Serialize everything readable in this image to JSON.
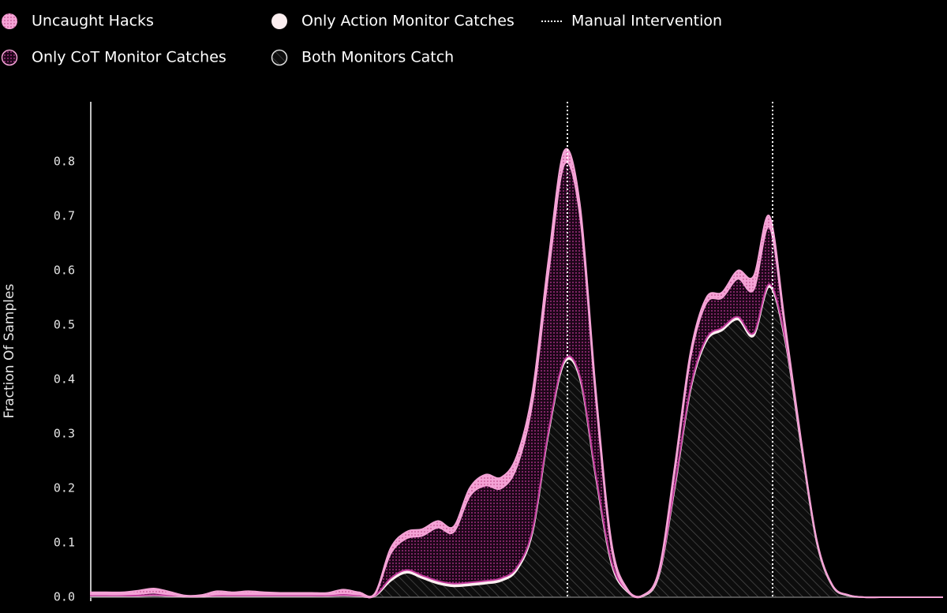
{
  "chart_data": {
    "type": "stacked_area",
    "ylabel": "Fraction Of Samples",
    "x": [
      0,
      1,
      2,
      3,
      4,
      5,
      6,
      7,
      8,
      9,
      10,
      11,
      12,
      13,
      14,
      15,
      16,
      17,
      18,
      19,
      20,
      21,
      22,
      23,
      24,
      25,
      26,
      27,
      28,
      29,
      30,
      31,
      32,
      33,
      34,
      35,
      36,
      37,
      38,
      39,
      40,
      41,
      42,
      43,
      44,
      45,
      46,
      47,
      48,
      49,
      50,
      51,
      52,
      53,
      54
    ],
    "xlim": [
      0,
      54
    ],
    "ylim": [
      0,
      0.91
    ],
    "yticks": [
      {
        "value": 0,
        "label": "0.0"
      },
      0.1,
      0.2,
      0.3,
      0.4,
      0.5,
      0.6,
      0.7,
      0.8
    ],
    "series": [
      {
        "name": "Both Monitors Catch",
        "color": "#6a6a6a",
        "pattern": "hatch",
        "values": [
          0.002,
          0.002,
          0.002,
          0.002,
          0.003,
          0.002,
          0.001,
          0.001,
          0.002,
          0.002,
          0.002,
          0.002,
          0.002,
          0.002,
          0.002,
          0.002,
          0.003,
          0.002,
          0.002,
          0.03,
          0.045,
          0.035,
          0.025,
          0.02,
          0.022,
          0.025,
          0.03,
          0.05,
          0.12,
          0.3,
          0.43,
          0.4,
          0.22,
          0.06,
          0.01,
          0.002,
          0.04,
          0.2,
          0.38,
          0.47,
          0.49,
          0.51,
          0.48,
          0.57,
          0.47,
          0.28,
          0.1,
          0.02,
          0.003,
          0,
          0,
          0,
          0,
          0,
          0
        ]
      },
      {
        "name": "Only Action Monitor Catches",
        "color": "#fbeef0",
        "pattern": "solid",
        "values": [
          0.001,
          0.001,
          0.001,
          0.001,
          0.001,
          0.001,
          0.001,
          0.001,
          0.001,
          0.001,
          0.001,
          0.001,
          0.001,
          0.001,
          0.001,
          0.001,
          0.001,
          0.001,
          0.001,
          0.005,
          0.005,
          0.005,
          0.005,
          0.005,
          0.005,
          0.005,
          0.005,
          0.005,
          0.005,
          0.005,
          0.005,
          0.005,
          0.005,
          0.005,
          0.002,
          0.001,
          0.003,
          0.005,
          0.005,
          0.005,
          0.005,
          0.005,
          0.005,
          0.005,
          0.005,
          0.005,
          0.003,
          0.001,
          0.001,
          0,
          0,
          0,
          0,
          0,
          0
        ]
      },
      {
        "name": "Only CoT Monitor Catches",
        "color": "#c0399a",
        "pattern": "dots",
        "values": [
          0.002,
          0.002,
          0.002,
          0.003,
          0.004,
          0.002,
          0,
          0,
          0.002,
          0.002,
          0.002,
          0.002,
          0.002,
          0.002,
          0.002,
          0.002,
          0.003,
          0.002,
          0.002,
          0.045,
          0.058,
          0.073,
          0.098,
          0.095,
          0.158,
          0.175,
          0.165,
          0.185,
          0.235,
          0.29,
          0.36,
          0.295,
          0.14,
          0.025,
          0,
          0,
          0.002,
          0.025,
          0.055,
          0.065,
          0.055,
          0.07,
          0.08,
          0.105,
          0.015,
          0,
          0,
          0,
          0,
          0,
          0,
          0,
          0,
          0,
          0
        ]
      },
      {
        "name": "Uncaught Hacks",
        "color": "#f4a3d6",
        "pattern": "dots",
        "values": [
          0.004,
          0.004,
          0.004,
          0.006,
          0.008,
          0.005,
          0.001,
          0.002,
          0.006,
          0.004,
          0.006,
          0.004,
          0.003,
          0.003,
          0.003,
          0.003,
          0.007,
          0.004,
          0.002,
          0.01,
          0.012,
          0.012,
          0.012,
          0.01,
          0.015,
          0.02,
          0.02,
          0.02,
          0.02,
          0.025,
          0.025,
          0.02,
          0.015,
          0.01,
          0.003,
          0.001,
          0.005,
          0.01,
          0.01,
          0.01,
          0.01,
          0.015,
          0.025,
          0.02,
          0.01,
          0.005,
          0.002,
          0.001,
          0,
          0,
          0,
          0,
          0,
          0,
          0
        ]
      }
    ],
    "manual_intervention": {
      "name": "Manual Intervention",
      "x": [
        30.2,
        43.2
      ],
      "color": "#ffffff"
    }
  }
}
